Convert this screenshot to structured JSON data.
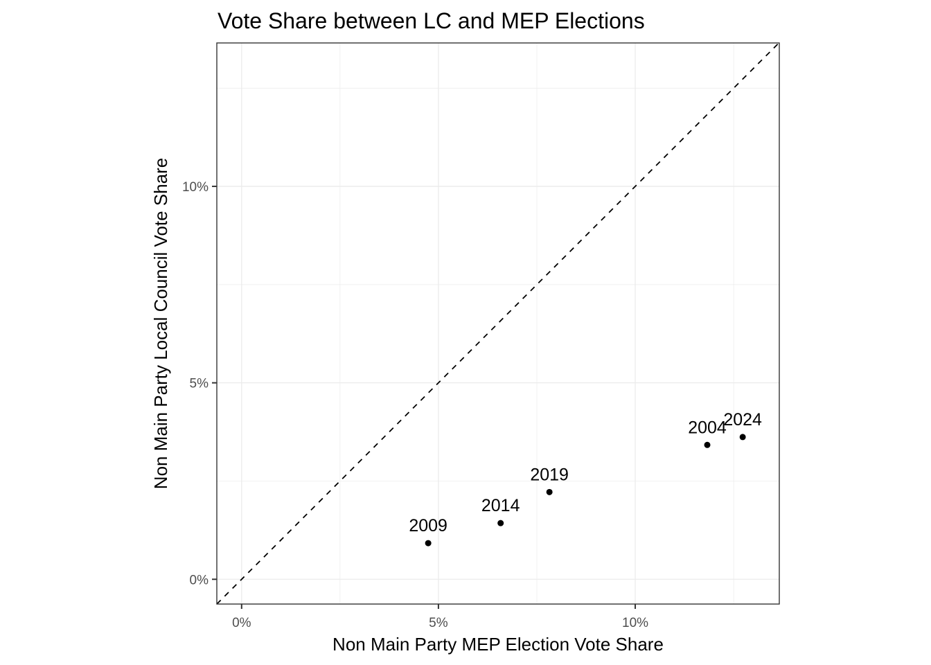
{
  "chart_data": {
    "type": "scatter",
    "title": "Vote Share between LC and MEP Elections",
    "xlabel": "Non Main Party MEP Election Vote Share",
    "ylabel": "Non Main Party Local Council Vote Share",
    "xlim": [
      -0.63,
      13.66
    ],
    "ylim": [
      -0.63,
      13.65
    ],
    "x_ticks": [
      0,
      5,
      10
    ],
    "x_tick_labels": [
      "0%",
      "5%",
      "10%"
    ],
    "y_ticks": [
      0,
      5,
      10
    ],
    "y_tick_labels": [
      "0%",
      "5%",
      "10%"
    ],
    "minor_grid": [
      2.5,
      7.5,
      12.5
    ],
    "grid": true,
    "legend": "none",
    "reference_line": {
      "type": "identity",
      "style": "dashed",
      "slope": 1,
      "intercept": 0
    },
    "points": [
      {
        "label": "2004",
        "x": 11.83,
        "y": 3.42
      },
      {
        "label": "2009",
        "x": 4.74,
        "y": 0.92
      },
      {
        "label": "2014",
        "x": 6.58,
        "y": 1.43
      },
      {
        "label": "2019",
        "x": 7.82,
        "y": 2.22
      },
      {
        "label": "2024",
        "x": 12.73,
        "y": 3.62
      }
    ],
    "units": "percent"
  }
}
